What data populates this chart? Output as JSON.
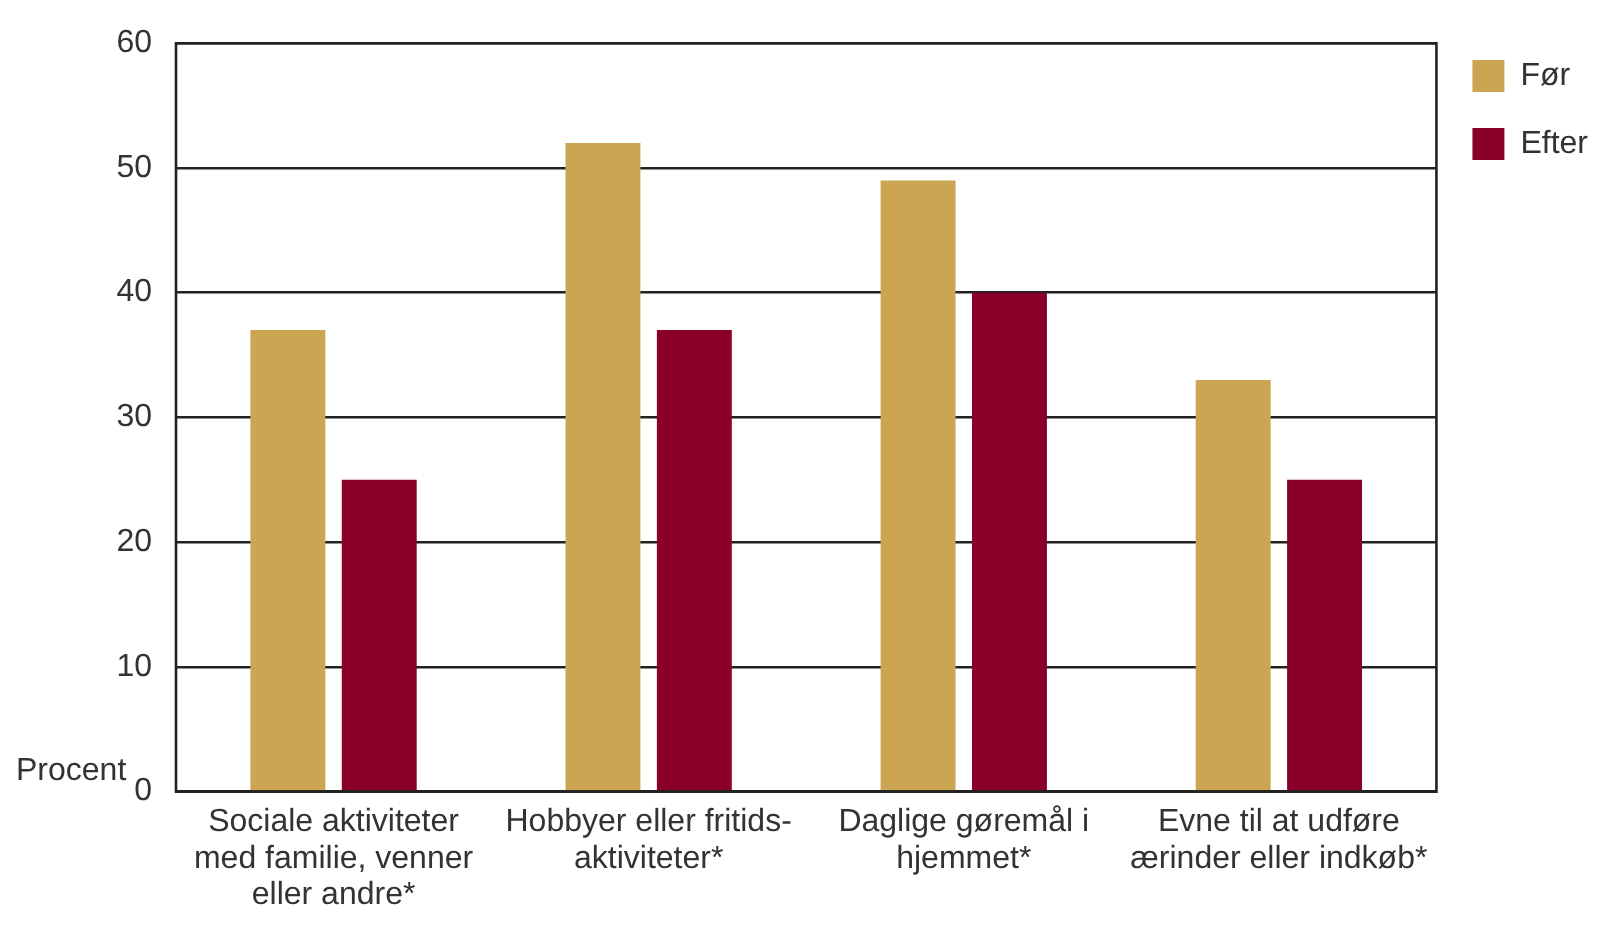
{
  "chart_data": {
    "type": "bar",
    "ylabel": "Procent",
    "categories": [
      "Sociale aktiviteter med familie, venner eller andre*",
      "Hobbyer eller fritids-aktiviteter*",
      "Daglige gøremål i hjemmet*",
      "Evne til at udføre ærinder eller indkøb*"
    ],
    "series": [
      {
        "name": "Før",
        "color": "#cba552",
        "values": [
          37,
          52,
          49,
          33
        ]
      },
      {
        "name": "Efter",
        "color": "#8b0028",
        "values": [
          25,
          37,
          40,
          25
        ]
      }
    ],
    "ylim": [
      0,
      60
    ],
    "yticks": [
      0,
      10,
      20,
      30,
      40,
      50,
      60
    ],
    "grid": "y",
    "legend": "top right"
  }
}
